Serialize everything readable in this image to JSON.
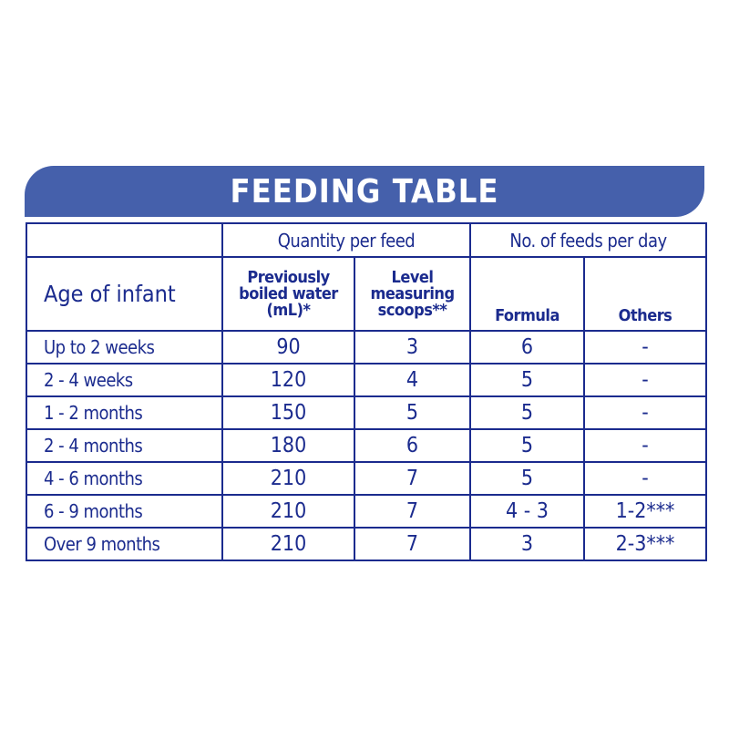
{
  "title": "FEEDING TABLE",
  "colors": {
    "banner": "#4560ab",
    "text": "#1b2b8e"
  },
  "headers": {
    "quantity_group": "Quantity per feed",
    "feeds_group": "No. of feeds per day",
    "age": "Age of infant",
    "water": [
      "Previously",
      "boiled water",
      "(mL)*"
    ],
    "scoops": [
      "Level",
      "measuring",
      "scoops**"
    ],
    "formula": "Formula",
    "others": "Others"
  },
  "rows": [
    {
      "age": "Up to 2 weeks",
      "water": "90",
      "scoops": "3",
      "formula": "6",
      "others": "-"
    },
    {
      "age": "2 - 4 weeks",
      "water": "120",
      "scoops": "4",
      "formula": "5",
      "others": "-"
    },
    {
      "age": "1 - 2 months",
      "water": "150",
      "scoops": "5",
      "formula": "5",
      "others": "-"
    },
    {
      "age": "2 - 4 months",
      "water": "180",
      "scoops": "6",
      "formula": "5",
      "others": "-"
    },
    {
      "age": "4 - 6 months",
      "water": "210",
      "scoops": "7",
      "formula": "5",
      "others": "-"
    },
    {
      "age": "6 - 9 months",
      "water": "210",
      "scoops": "7",
      "formula": "4 - 3",
      "others": "1-2***"
    },
    {
      "age": "Over 9 months",
      "water": "210",
      "scoops": "7",
      "formula": "3",
      "others": "2-3***"
    }
  ]
}
